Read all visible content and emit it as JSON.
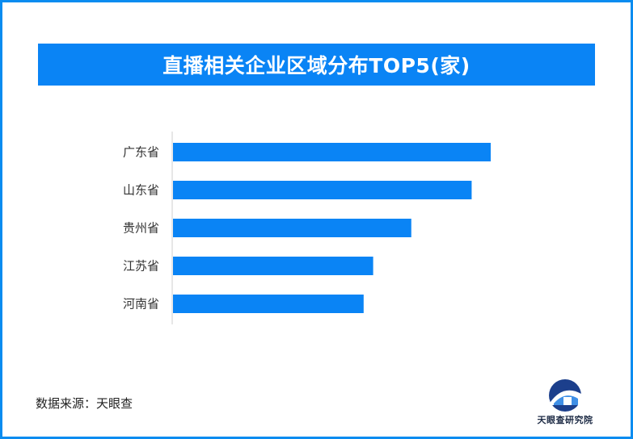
{
  "colors": {
    "frame": "#0a8cf0",
    "title_bg": "#0a84f5",
    "bar": "#0a84f5",
    "logo_dark": "#1c3f8c"
  },
  "chart_data": {
    "type": "bar",
    "orientation": "horizontal",
    "title": "直播相关企业区域分布TOP5(家)",
    "categories": [
      "广东省",
      "山东省",
      "贵州省",
      "江苏省",
      "河南省"
    ],
    "values": [
      100,
      94,
      75,
      63,
      60
    ],
    "xlim": [
      0,
      100
    ],
    "grid": false,
    "legend": "none"
  },
  "footer": {
    "source": "数据来源：天眼查"
  },
  "logo": {
    "text": "天眼查研究院",
    "icon": "tianyancha-logo-icon"
  }
}
